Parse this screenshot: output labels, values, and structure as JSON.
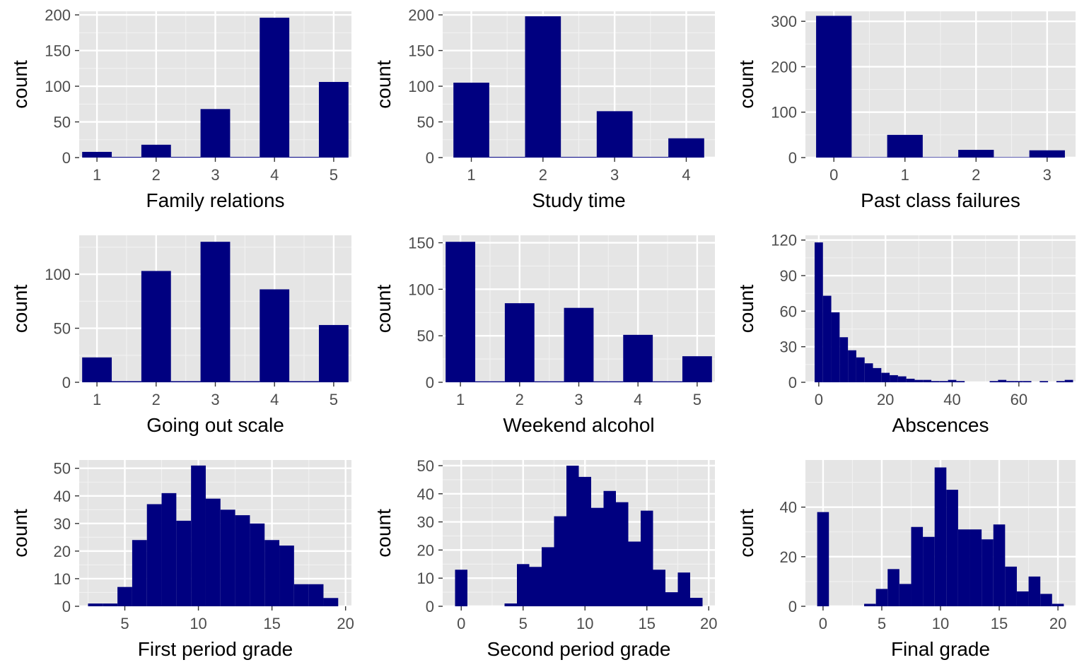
{
  "colors": {
    "bar": "#000080",
    "panel_background": "#e5e5e5",
    "grid": "#ffffff"
  },
  "chart_data": [
    {
      "type": "bar",
      "xlabel": "Family relations",
      "ylabel": "count",
      "bin_width": 0.5,
      "x": [
        1,
        1.5,
        2,
        2.5,
        3,
        3.5,
        4,
        4.5,
        5
      ],
      "values": [
        8,
        1,
        18,
        1,
        68,
        1,
        196,
        1,
        106
      ],
      "xlim": [
        0.7,
        5.3
      ],
      "ylim": [
        0,
        205
      ],
      "x_ticks": [
        1,
        2,
        3,
        4,
        5
      ],
      "y_ticks": [
        0,
        50,
        100,
        150,
        200
      ],
      "grid": true
    },
    {
      "type": "bar",
      "xlabel": "Study time",
      "ylabel": "count",
      "bin_width": 0.5,
      "x": [
        1,
        1.5,
        2,
        2.5,
        3,
        3.5,
        4
      ],
      "values": [
        105,
        1,
        198,
        1,
        65,
        1,
        27
      ],
      "xlim": [
        0.6,
        4.4
      ],
      "ylim": [
        0,
        205
      ],
      "x_ticks": [
        1,
        2,
        3,
        4
      ],
      "y_ticks": [
        0,
        50,
        100,
        150,
        200
      ],
      "grid": true
    },
    {
      "type": "bar",
      "xlabel": "Past class failures",
      "ylabel": "count",
      "bin_width": 0.5,
      "x": [
        0,
        0.5,
        1,
        1.5,
        2,
        2.5,
        3
      ],
      "values": [
        312,
        1,
        50,
        1,
        17,
        1,
        16
      ],
      "xlim": [
        -0.4,
        3.4
      ],
      "ylim": [
        0,
        322
      ],
      "x_ticks": [
        0,
        1,
        2,
        3
      ],
      "y_ticks": [
        0,
        100,
        200,
        300
      ],
      "grid": true
    },
    {
      "type": "bar",
      "xlabel": "Going out scale",
      "ylabel": "count",
      "bin_width": 0.5,
      "x": [
        1,
        1.5,
        2,
        2.5,
        3,
        3.5,
        4,
        4.5,
        5
      ],
      "values": [
        23,
        1,
        103,
        1,
        130,
        1,
        86,
        1,
        53
      ],
      "xlim": [
        0.7,
        5.3
      ],
      "ylim": [
        0,
        136
      ],
      "x_ticks": [
        1,
        2,
        3,
        4,
        5
      ],
      "y_ticks": [
        0,
        50,
        100
      ],
      "grid": true
    },
    {
      "type": "bar",
      "xlabel": "Weekend alcohol",
      "ylabel": "count",
      "bin_width": 0.5,
      "x": [
        1,
        1.5,
        2,
        2.5,
        3,
        3.5,
        4,
        4.5,
        5
      ],
      "values": [
        151,
        1,
        85,
        1,
        80,
        1,
        51,
        1,
        28
      ],
      "xlim": [
        0.7,
        5.3
      ],
      "ylim": [
        0,
        158
      ],
      "x_ticks": [
        1,
        2,
        3,
        4,
        5
      ],
      "y_ticks": [
        0,
        50,
        100,
        150
      ],
      "grid": true
    },
    {
      "type": "bar",
      "xlabel": "Abscences",
      "ylabel": "count",
      "bin_width": 2.5,
      "x": [
        0,
        2.5,
        5,
        7.5,
        10,
        12.5,
        15,
        17.5,
        20,
        22.5,
        25,
        27.5,
        30,
        32.5,
        35,
        37.5,
        40,
        42.5,
        45,
        47.5,
        50,
        52.5,
        55,
        57.5,
        60,
        62.5,
        65,
        67.5,
        70,
        72.5,
        75
      ],
      "values": [
        118,
        73,
        59,
        38,
        27,
        21,
        16,
        12,
        8,
        6,
        5,
        3,
        2,
        2,
        1,
        1,
        2,
        1,
        0,
        0,
        0,
        1,
        2,
        1,
        1,
        1,
        0,
        1,
        0,
        1,
        2
      ],
      "xlim": [
        -4,
        77
      ],
      "ylim": [
        0,
        124
      ],
      "x_ticks": [
        0,
        20,
        40,
        60
      ],
      "y_ticks": [
        0,
        30,
        60,
        90,
        120
      ],
      "grid": true
    },
    {
      "type": "bar",
      "xlabel": "First period grade",
      "ylabel": "count",
      "bin_width": 1,
      "x": [
        3,
        4,
        5,
        6,
        7,
        8,
        9,
        10,
        11,
        12,
        13,
        14,
        15,
        16,
        17,
        18,
        19
      ],
      "values": [
        1,
        1,
        7,
        24,
        37,
        41,
        31,
        51,
        39,
        35,
        33,
        30,
        24,
        22,
        8,
        8,
        3
      ],
      "xlim": [
        1.9,
        20.4
      ],
      "ylim": [
        0,
        53
      ],
      "x_ticks": [
        5,
        10,
        15,
        20
      ],
      "y_ticks": [
        0,
        10,
        20,
        30,
        40,
        50
      ],
      "grid": true
    },
    {
      "type": "bar",
      "xlabel": "Second period grade",
      "ylabel": "count",
      "bin_width": 1,
      "x": [
        0,
        1,
        2,
        3,
        4,
        5,
        6,
        7,
        8,
        9,
        10,
        11,
        12,
        13,
        14,
        15,
        16,
        17,
        18,
        19
      ],
      "values": [
        13,
        0,
        0,
        0,
        1,
        15,
        14,
        21,
        32,
        50,
        46,
        35,
        41,
        37,
        23,
        34,
        13,
        5,
        12,
        3
      ],
      "xlim": [
        -1.5,
        20.5
      ],
      "ylim": [
        0,
        52
      ],
      "x_ticks": [
        0,
        5,
        10,
        15,
        20
      ],
      "y_ticks": [
        0,
        10,
        20,
        30,
        40,
        50
      ],
      "grid": true
    },
    {
      "type": "bar",
      "xlabel": "Final grade",
      "ylabel": "count",
      "bin_width": 1,
      "x": [
        0,
        1,
        2,
        3,
        4,
        5,
        6,
        7,
        8,
        9,
        10,
        11,
        12,
        13,
        14,
        15,
        16,
        17,
        18,
        19,
        20
      ],
      "values": [
        38,
        0,
        0,
        0,
        1,
        7,
        15,
        9,
        32,
        28,
        56,
        47,
        31,
        31,
        27,
        33,
        16,
        6,
        12,
        5,
        1
      ],
      "xlim": [
        -1.5,
        21.5
      ],
      "ylim": [
        0,
        59
      ],
      "x_ticks": [
        0,
        5,
        10,
        15,
        20
      ],
      "y_ticks": [
        0,
        20,
        40
      ],
      "grid": true
    }
  ]
}
